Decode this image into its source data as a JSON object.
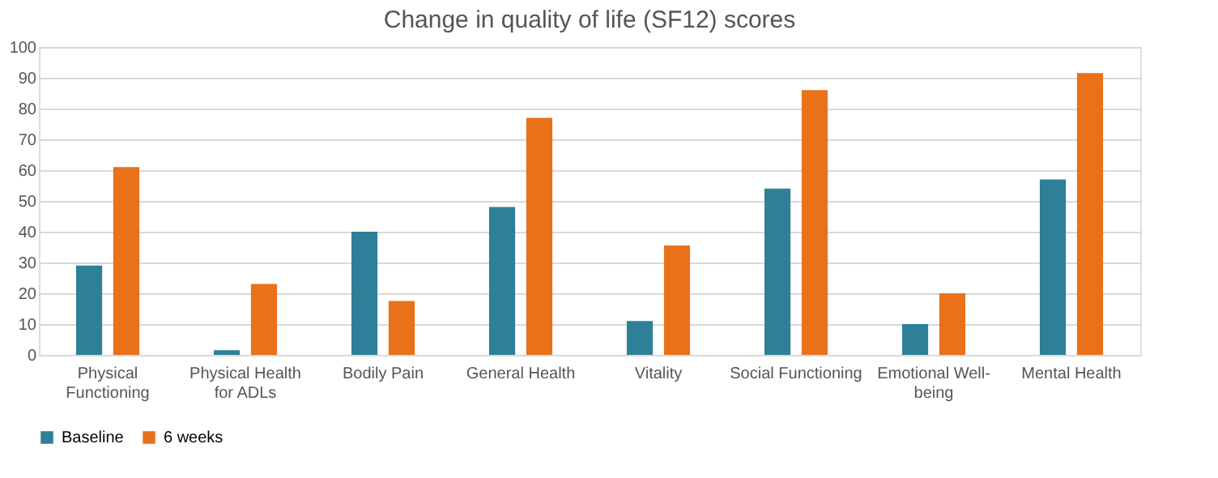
{
  "chart_data": {
    "type": "bar",
    "title": "Change in quality of life (SF12) scores",
    "categories": [
      "Physical Functioning",
      "Physical Health for ADLs",
      "Bodily Pain",
      "General Health",
      "Vitality",
      "Social Functioning",
      "Emotional Well-being",
      "Mental Health"
    ],
    "series": [
      {
        "name": "Baseline",
        "color": "#2e7f98",
        "values": [
          29,
          1.5,
          40,
          48,
          11,
          54,
          10,
          57
        ]
      },
      {
        "name": "6 weeks",
        "color": "#e8711a",
        "values": [
          61,
          23,
          17.5,
          77,
          35.5,
          86,
          20,
          91.5
        ]
      }
    ],
    "ylim": [
      0,
      100
    ],
    "yticks": [
      0,
      10,
      20,
      30,
      40,
      50,
      60,
      70,
      80,
      90,
      100
    ],
    "grid": "y",
    "legend": "bottom"
  }
}
